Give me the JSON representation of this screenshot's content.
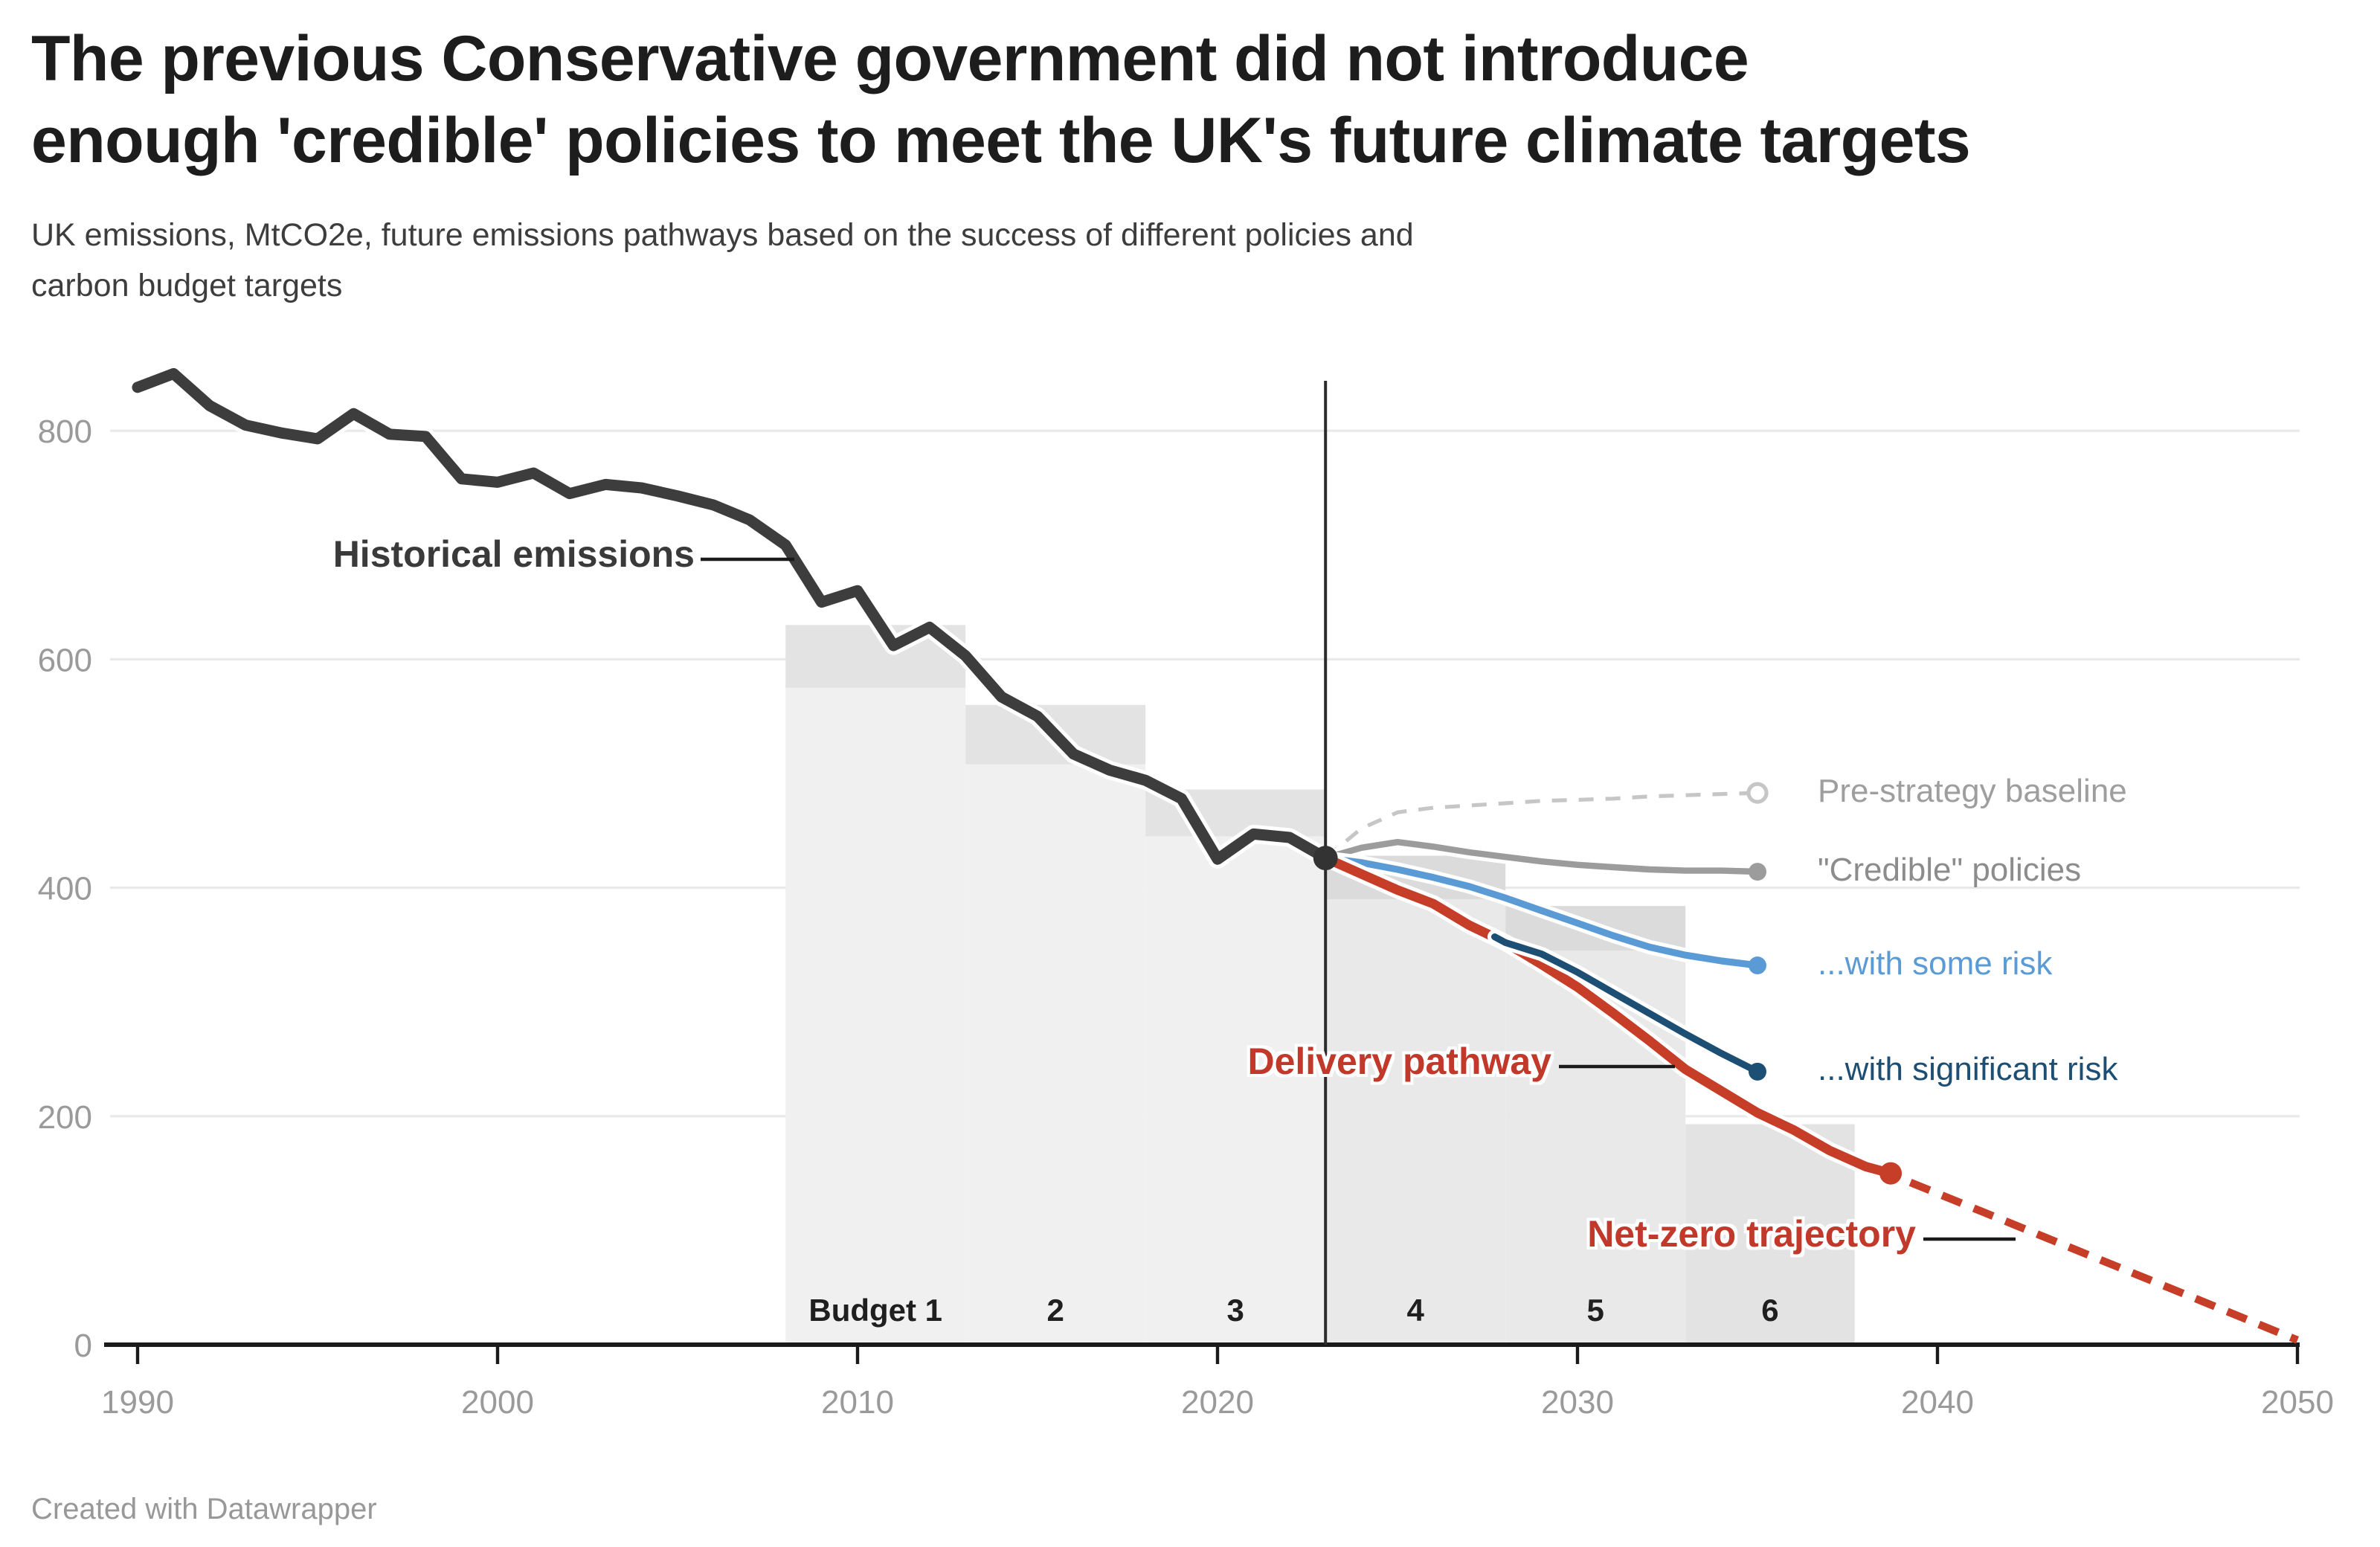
{
  "header": {
    "title_line1": "The previous Conservative government did not introduce",
    "title_line2": "enough 'credible' policies to meet the UK's future climate targets",
    "subtitle_line1": "UK emissions, MtCO2e, future emissions pathways based on the success of different policies and",
    "subtitle_line2": "carbon budget targets"
  },
  "footer": {
    "credit": "Created with Datawrapper"
  },
  "chart_data": {
    "type": "line",
    "title": "The previous Conservative government did not introduce enough 'credible' policies to meet the UK's future climate targets",
    "subtitle": "UK emissions, MtCO2e, future emissions pathways based on the success of different policies and carbon budget targets",
    "unit": "MtCO2e",
    "ylim": [
      0,
      860
    ],
    "yticks": [
      0,
      200,
      400,
      600,
      800
    ],
    "xticks": [
      1990,
      2000,
      2010,
      2020,
      2030,
      2040,
      2050
    ],
    "grid": "horizontal",
    "today_line_year": 2023,
    "axis_color": "#1a1a1a",
    "grid_color": "#e9e9e9",
    "tick_label_color": "#9a9a9a",
    "budget_label_color": "#1f1f1f",
    "budgets": [
      {
        "label": "Budget 1",
        "start": 2008,
        "end": 2013,
        "top": 630,
        "cap_bottom": 575,
        "body_color": "#f0f0f0",
        "cap_color": "#e3e3e3"
      },
      {
        "label": "2",
        "start": 2013,
        "end": 2018,
        "top": 560,
        "cap_bottom": 508,
        "body_color": "#f0f0f0",
        "cap_color": "#e3e3e3"
      },
      {
        "label": "3",
        "start": 2018,
        "end": 2023,
        "top": 486,
        "cap_bottom": 445,
        "body_color": "#f0f0f0",
        "cap_color": "#e3e3e3"
      },
      {
        "label": "4",
        "start": 2023,
        "end": 2028,
        "top": 428,
        "cap_bottom": 390,
        "body_color": "#e9e9e9",
        "cap_color": "#dbdbdb"
      },
      {
        "label": "5",
        "start": 2028,
        "end": 2033,
        "top": 384,
        "cap_bottom": 345,
        "body_color": "#e9e9e9",
        "cap_color": "#dbdbdb"
      },
      {
        "label": "6",
        "start": 2033,
        "end": 2037.7,
        "top": 193,
        "cap_bottom": 193,
        "body_color": "#e3e3e3",
        "cap_color": "#e3e3e3"
      }
    ],
    "series": [
      {
        "id": "historical",
        "name": "Historical emissions",
        "color": "#3d3d3d",
        "width": 7.5,
        "style": "solid",
        "casing": true,
        "marker": "dot",
        "marker_r": 8.2,
        "points": [
          [
            1990,
            838
          ],
          [
            1991,
            850
          ],
          [
            1992,
            822
          ],
          [
            1993,
            805
          ],
          [
            1994,
            798
          ],
          [
            1995,
            793
          ],
          [
            1996,
            815
          ],
          [
            1997,
            797
          ],
          [
            1998,
            795
          ],
          [
            1999,
            758
          ],
          [
            2000,
            755
          ],
          [
            2001,
            763
          ],
          [
            2002,
            745
          ],
          [
            2003,
            753
          ],
          [
            2004,
            750
          ],
          [
            2005,
            743
          ],
          [
            2006,
            735
          ],
          [
            2007,
            722
          ],
          [
            2008,
            700
          ],
          [
            2009,
            650
          ],
          [
            2010,
            660
          ],
          [
            2011,
            612
          ],
          [
            2012,
            628
          ],
          [
            2013,
            603
          ],
          [
            2014,
            567
          ],
          [
            2015,
            550
          ],
          [
            2016,
            517
          ],
          [
            2017,
            503
          ],
          [
            2018,
            494
          ],
          [
            2019,
            478
          ],
          [
            2020,
            425
          ],
          [
            2021,
            447
          ],
          [
            2022,
            444
          ],
          [
            2023,
            426
          ]
        ]
      },
      {
        "id": "baseline",
        "name": "Pre-strategy baseline",
        "color": "#c6c6c6",
        "width": 2.6,
        "style": "dashed",
        "dash": "10 8",
        "casing": false,
        "marker": "open-circle",
        "marker_r": 6,
        "points": [
          [
            2023,
            426
          ],
          [
            2024,
            452
          ],
          [
            2025,
            466
          ],
          [
            2026,
            470
          ],
          [
            2027,
            472
          ],
          [
            2028,
            474
          ],
          [
            2029,
            476
          ],
          [
            2030,
            477
          ],
          [
            2031,
            478
          ],
          [
            2032,
            480
          ],
          [
            2033,
            481
          ],
          [
            2034,
            482
          ],
          [
            2035,
            483
          ]
        ]
      },
      {
        "id": "credible",
        "name": "\"Credible\" policies",
        "color": "#9c9c9c",
        "width": 4.2,
        "style": "solid",
        "casing": true,
        "marker": "dot",
        "marker_r": 6,
        "points": [
          [
            2023,
            426
          ],
          [
            2024,
            435
          ],
          [
            2025,
            440
          ],
          [
            2026,
            436
          ],
          [
            2027,
            431
          ],
          [
            2028,
            427
          ],
          [
            2029,
            423
          ],
          [
            2030,
            420
          ],
          [
            2031,
            418
          ],
          [
            2032,
            416
          ],
          [
            2033,
            415
          ],
          [
            2034,
            415
          ],
          [
            2035,
            414
          ]
        ]
      },
      {
        "id": "some-risk",
        "name": "...with some risk",
        "color": "#5b9bd5",
        "width": 4.6,
        "style": "solid",
        "casing": true,
        "marker": "dot",
        "marker_r": 6,
        "points": [
          [
            2023,
            426
          ],
          [
            2024,
            422
          ],
          [
            2025,
            416
          ],
          [
            2026,
            409
          ],
          [
            2027,
            401
          ],
          [
            2028,
            391
          ],
          [
            2029,
            380
          ],
          [
            2030,
            369
          ],
          [
            2031,
            358
          ],
          [
            2032,
            348
          ],
          [
            2033,
            341
          ],
          [
            2034,
            336
          ],
          [
            2035,
            332
          ]
        ]
      },
      {
        "id": "delivery",
        "name": "Delivery pathway",
        "color": "#c63d28",
        "width": 6.4,
        "style": "solid",
        "casing": true,
        "marker": "dot",
        "marker_r": 7.5,
        "points": [
          [
            2023,
            426
          ],
          [
            2024,
            412
          ],
          [
            2025,
            398
          ],
          [
            2026,
            386
          ],
          [
            2027,
            367
          ],
          [
            2028,
            352
          ],
          [
            2029,
            333
          ],
          [
            2030,
            313
          ],
          [
            2031,
            290
          ],
          [
            2032,
            266
          ],
          [
            2033,
            241
          ],
          [
            2034,
            222
          ],
          [
            2035,
            203
          ],
          [
            2036,
            188
          ],
          [
            2037,
            170
          ],
          [
            2038,
            156
          ],
          [
            2038.7,
            150
          ]
        ]
      },
      {
        "id": "netzero",
        "name": "Net-zero trajectory",
        "color": "#c63d28",
        "width": 5.2,
        "style": "dashed",
        "dash": "14 9",
        "casing": false,
        "marker": "none",
        "points": [
          [
            2039.25,
            142
          ],
          [
            2050,
            4
          ]
        ]
      },
      {
        "id": "significant-risk",
        "name": "...with significant risk",
        "color": "#1d4e74",
        "width": 4.6,
        "style": "solid",
        "casing": true,
        "marker": "dot",
        "marker_r": 6,
        "points": [
          [
            2027.7,
            357
          ],
          [
            2028,
            352
          ],
          [
            2029,
            342
          ],
          [
            2030,
            326
          ],
          [
            2031,
            308
          ],
          [
            2032,
            290
          ],
          [
            2033,
            272
          ],
          [
            2034,
            255
          ],
          [
            2035,
            239
          ]
        ]
      }
    ],
    "legend": [
      {
        "id": "baseline",
        "label": "Pre-strategy baseline",
        "color": "#9e9e9e"
      },
      {
        "id": "credible",
        "label": "\"Credible\" policies",
        "color": "#8c8c8c"
      },
      {
        "id": "some-risk",
        "label": "...with some risk",
        "color": "#5b9bd5"
      },
      {
        "id": "significant-risk",
        "label": "...with significant risk",
        "color": "#1d4e74"
      }
    ],
    "annotations": {
      "historical": {
        "label": "Historical emissions",
        "color": "#3a3a3a"
      },
      "delivery": {
        "label": "Delivery pathway",
        "color": "#c0392b"
      },
      "netzero": {
        "label": "Net-zero trajectory",
        "color": "#c0392b"
      }
    }
  }
}
